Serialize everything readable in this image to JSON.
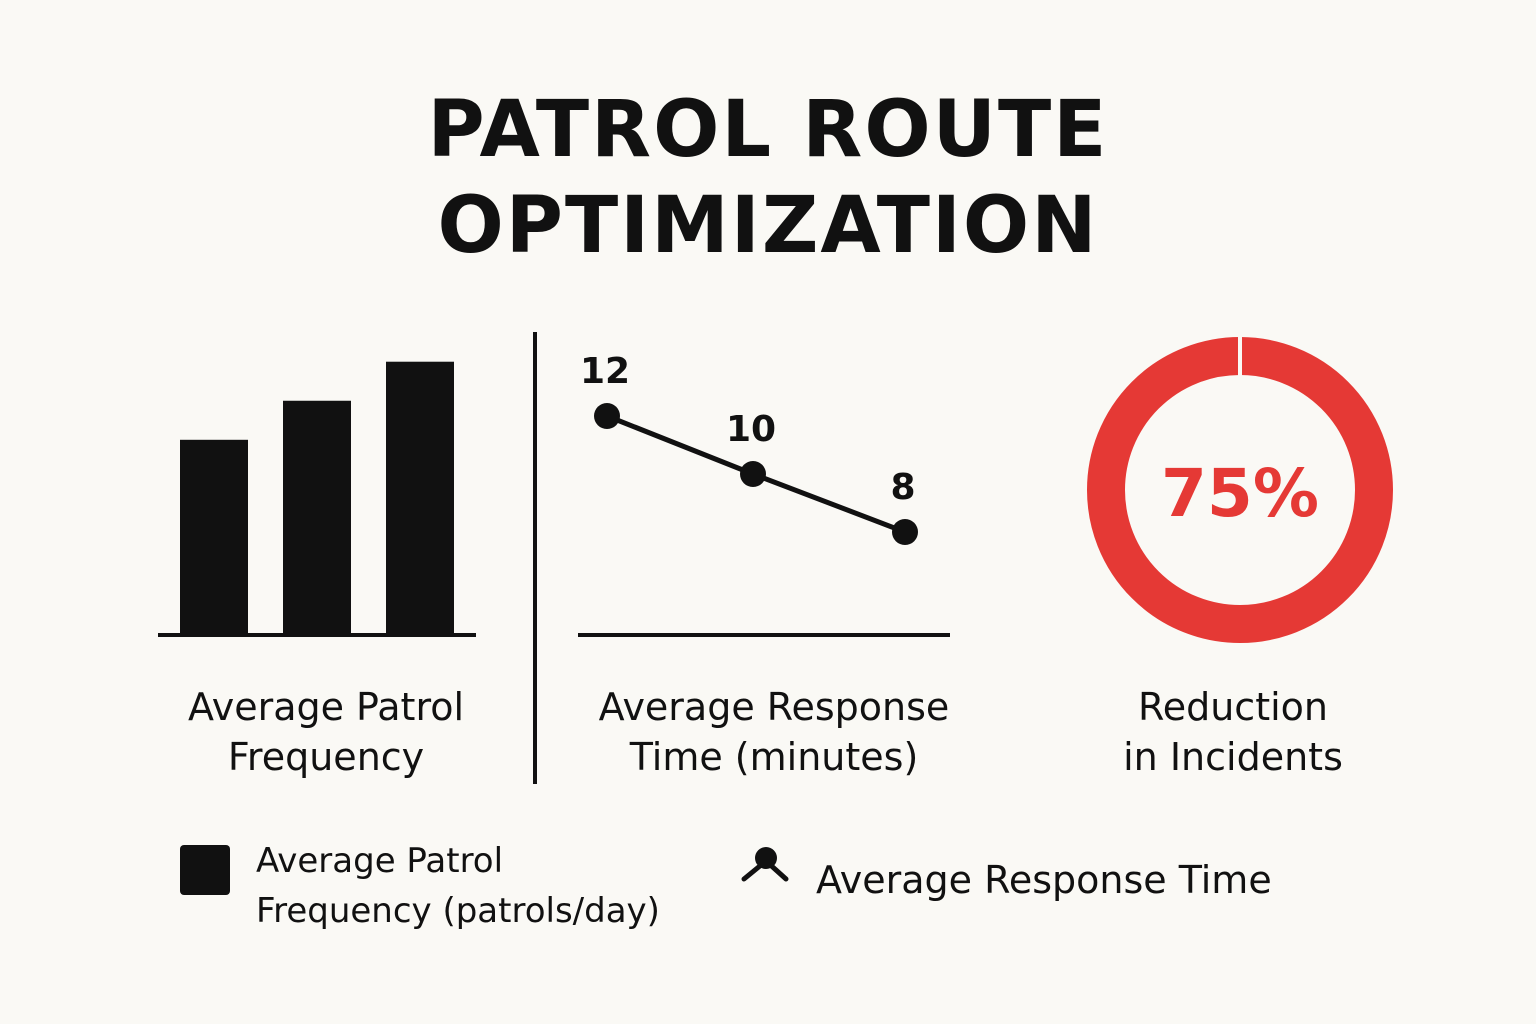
{
  "title": {
    "line1": "PATROL ROUTE",
    "line2": "OPTIMIZATION"
  },
  "colors": {
    "ink": "#111111",
    "accent": "#e53935",
    "background": "#faf9f5"
  },
  "chart_data": [
    {
      "type": "bar",
      "values": [
        5,
        6,
        7
      ],
      "ylim": [
        0,
        7.3
      ],
      "caption": {
        "line1": "Average Patrol",
        "line2": "Frequency"
      }
    },
    {
      "type": "line",
      "values": [
        12,
        10,
        8
      ],
      "data_labels": [
        "12",
        "10",
        "8"
      ],
      "caption": {
        "line1": "Average Response",
        "line2": "Time (minutes)"
      }
    },
    {
      "type": "pie",
      "variant": "donut",
      "value": 75,
      "center_label": "75%",
      "caption": {
        "line1": "Reduction",
        "line2": "in Incidents"
      }
    }
  ],
  "legend": {
    "bar": {
      "icon": "black-square-icon",
      "line1": "Average Patrol",
      "line2": "Frequency (patrols/day)"
    },
    "line": {
      "icon": "line-marker-icon",
      "label": "Average Response Time"
    }
  }
}
